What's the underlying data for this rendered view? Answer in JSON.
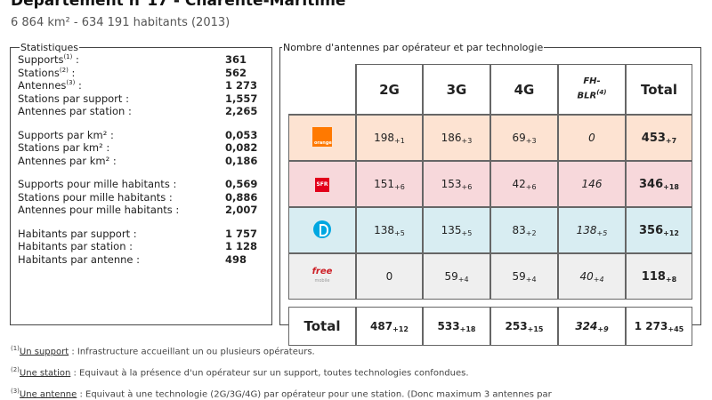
{
  "header": {
    "title": "Département n°17 - Charente-Maritime",
    "subtitle": "6 864 km² - 634 191 habitants (2013)"
  },
  "statistics": {
    "legend": "Statistiques",
    "groups": [
      [
        {
          "label": "Supports",
          "sup": "(1)",
          "suffix": " :",
          "value": "361"
        },
        {
          "label": "Stations",
          "sup": "(2)",
          "suffix": " :",
          "value": "562"
        },
        {
          "label": "Antennes",
          "sup": "(3)",
          "suffix": " :",
          "value": "1 273"
        },
        {
          "label": "Stations par support :",
          "sup": "",
          "suffix": "",
          "value": "1,557"
        },
        {
          "label": "Antennes par station :",
          "sup": "",
          "suffix": "",
          "value": "2,265"
        }
      ],
      [
        {
          "label": "Supports par km² :",
          "sup": "",
          "suffix": "",
          "value": "0,053"
        },
        {
          "label": "Stations par km² :",
          "sup": "",
          "suffix": "",
          "value": "0,082"
        },
        {
          "label": "Antennes par km² :",
          "sup": "",
          "suffix": "",
          "value": "0,186"
        }
      ],
      [
        {
          "label": "Supports pour mille habitants :",
          "sup": "",
          "suffix": "",
          "value": "0,569"
        },
        {
          "label": "Stations pour mille habitants :",
          "sup": "",
          "suffix": "",
          "value": "0,886"
        },
        {
          "label": "Antennes pour mille habitants :",
          "sup": "",
          "suffix": "",
          "value": "2,007"
        }
      ],
      [
        {
          "label": "Habitants par support :",
          "sup": "",
          "suffix": "",
          "value": "1 757"
        },
        {
          "label": "Habitants par station :",
          "sup": "",
          "suffix": "",
          "value": "1 128"
        },
        {
          "label": "Habitants par antenne :",
          "sup": "",
          "suffix": "",
          "value": "498"
        }
      ]
    ]
  },
  "antennas": {
    "legend": "Nombre d'antennes par opérateur et par technologie",
    "headers": [
      "2G",
      "3G",
      "4G",
      "FH-",
      "BLR",
      "(4)",
      "Total"
    ],
    "rows": [
      {
        "operator": "orange",
        "logo_text": "orange",
        "bg": "#fde3d2",
        "cells": [
          {
            "v": "198",
            "d": "+1"
          },
          {
            "v": "186",
            "d": "+3"
          },
          {
            "v": "69",
            "d": "+3"
          },
          {
            "v": "0",
            "d": ""
          },
          {
            "v": "453",
            "d": "+7"
          }
        ]
      },
      {
        "operator": "sfr",
        "logo_text": "SFR",
        "bg": "#f7d8db",
        "cells": [
          {
            "v": "151",
            "d": "+6"
          },
          {
            "v": "153",
            "d": "+6"
          },
          {
            "v": "42",
            "d": "+6"
          },
          {
            "v": "146",
            "d": ""
          },
          {
            "v": "346",
            "d": "+18"
          }
        ]
      },
      {
        "operator": "bouygues",
        "logo_text": "",
        "bg": "#d8edf2",
        "cells": [
          {
            "v": "138",
            "d": "+5"
          },
          {
            "v": "135",
            "d": "+5"
          },
          {
            "v": "83",
            "d": "+2"
          },
          {
            "v": "138",
            "d": "+5"
          },
          {
            "v": "356",
            "d": "+12"
          }
        ]
      },
      {
        "operator": "free",
        "logo_text": "free",
        "logo_sub": "mobile",
        "bg": "#efefef",
        "cells": [
          {
            "v": "0",
            "d": ""
          },
          {
            "v": "59",
            "d": "+4"
          },
          {
            "v": "59",
            "d": "+4"
          },
          {
            "v": "40",
            "d": "+4"
          },
          {
            "v": "118",
            "d": "+8"
          }
        ]
      }
    ],
    "total": {
      "label": "Total",
      "cells": [
        {
          "v": "487",
          "d": "+12"
        },
        {
          "v": "533",
          "d": "+18"
        },
        {
          "v": "253",
          "d": "+15"
        },
        {
          "v": "324",
          "d": "+9"
        },
        {
          "v": "1 273",
          "d": "+45"
        }
      ]
    }
  },
  "notes": [
    {
      "sup": "(1)",
      "term": "Un support",
      "text": " : Infrastructure accueillant un ou plusieurs opérateurs."
    },
    {
      "sup": "(2)",
      "term": "Une station",
      "text": " : Equivaut à la présence d'un opérateur sur un support, toutes technologies confondues."
    },
    {
      "sup": "(3)",
      "term": "Une antenne",
      "text": " : Equivaut à une technologie (2G/3G/4G) par opérateur pour une station. (Donc maximum 3 antennes par"
    }
  ]
}
